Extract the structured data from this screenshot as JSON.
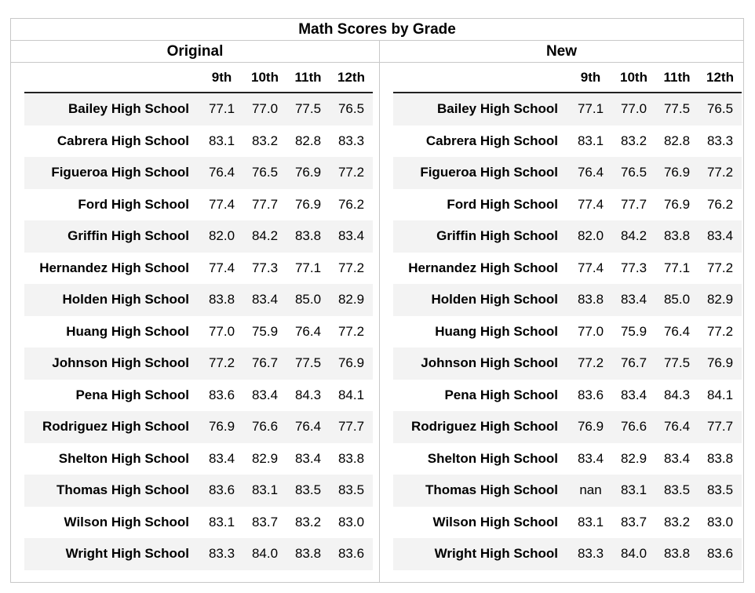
{
  "title": "Math Scores by Grade",
  "panels": [
    {
      "label": "Original",
      "columns": [
        "9th",
        "10th",
        "11th",
        "12th"
      ],
      "rows": [
        {
          "school": "Bailey High School",
          "v": [
            "77.1",
            "77.0",
            "77.5",
            "76.5"
          ]
        },
        {
          "school": "Cabrera High School",
          "v": [
            "83.1",
            "83.2",
            "82.8",
            "83.3"
          ]
        },
        {
          "school": "Figueroa High School",
          "v": [
            "76.4",
            "76.5",
            "76.9",
            "77.2"
          ]
        },
        {
          "school": "Ford High School",
          "v": [
            "77.4",
            "77.7",
            "76.9",
            "76.2"
          ]
        },
        {
          "school": "Griffin High School",
          "v": [
            "82.0",
            "84.2",
            "83.8",
            "83.4"
          ]
        },
        {
          "school": "Hernandez High School",
          "v": [
            "77.4",
            "77.3",
            "77.1",
            "77.2"
          ]
        },
        {
          "school": "Holden High School",
          "v": [
            "83.8",
            "83.4",
            "85.0",
            "82.9"
          ]
        },
        {
          "school": "Huang High School",
          "v": [
            "77.0",
            "75.9",
            "76.4",
            "77.2"
          ]
        },
        {
          "school": "Johnson High School",
          "v": [
            "77.2",
            "76.7",
            "77.5",
            "76.9"
          ]
        },
        {
          "school": "Pena High School",
          "v": [
            "83.6",
            "83.4",
            "84.3",
            "84.1"
          ]
        },
        {
          "school": "Rodriguez High School",
          "v": [
            "76.9",
            "76.6",
            "76.4",
            "77.7"
          ]
        },
        {
          "school": "Shelton High School",
          "v": [
            "83.4",
            "82.9",
            "83.4",
            "83.8"
          ]
        },
        {
          "school": "Thomas High School",
          "v": [
            "83.6",
            "83.1",
            "83.5",
            "83.5"
          ]
        },
        {
          "school": "Wilson High School",
          "v": [
            "83.1",
            "83.7",
            "83.2",
            "83.0"
          ]
        },
        {
          "school": "Wright High School",
          "v": [
            "83.3",
            "84.0",
            "83.8",
            "83.6"
          ]
        }
      ]
    },
    {
      "label": "New",
      "columns": [
        "9th",
        "10th",
        "11th",
        "12th"
      ],
      "rows": [
        {
          "school": "Bailey High School",
          "v": [
            "77.1",
            "77.0",
            "77.5",
            "76.5"
          ]
        },
        {
          "school": "Cabrera High School",
          "v": [
            "83.1",
            "83.2",
            "82.8",
            "83.3"
          ]
        },
        {
          "school": "Figueroa High School",
          "v": [
            "76.4",
            "76.5",
            "76.9",
            "77.2"
          ]
        },
        {
          "school": "Ford High School",
          "v": [
            "77.4",
            "77.7",
            "76.9",
            "76.2"
          ]
        },
        {
          "school": "Griffin High School",
          "v": [
            "82.0",
            "84.2",
            "83.8",
            "83.4"
          ]
        },
        {
          "school": "Hernandez High School",
          "v": [
            "77.4",
            "77.3",
            "77.1",
            "77.2"
          ]
        },
        {
          "school": "Holden High School",
          "v": [
            "83.8",
            "83.4",
            "85.0",
            "82.9"
          ]
        },
        {
          "school": "Huang High School",
          "v": [
            "77.0",
            "75.9",
            "76.4",
            "77.2"
          ]
        },
        {
          "school": "Johnson High School",
          "v": [
            "77.2",
            "76.7",
            "77.5",
            "76.9"
          ]
        },
        {
          "school": "Pena High School",
          "v": [
            "83.6",
            "83.4",
            "84.3",
            "84.1"
          ]
        },
        {
          "school": "Rodriguez High School",
          "v": [
            "76.9",
            "76.6",
            "76.4",
            "77.7"
          ]
        },
        {
          "school": "Shelton High School",
          "v": [
            "83.4",
            "82.9",
            "83.4",
            "83.8"
          ]
        },
        {
          "school": "Thomas High School",
          "v": [
            "nan",
            "83.1",
            "83.5",
            "83.5"
          ]
        },
        {
          "school": "Wilson High School",
          "v": [
            "83.1",
            "83.7",
            "83.2",
            "83.0"
          ]
        },
        {
          "school": "Wright High School",
          "v": [
            "83.3",
            "84.0",
            "83.8",
            "83.6"
          ]
        }
      ]
    }
  ]
}
